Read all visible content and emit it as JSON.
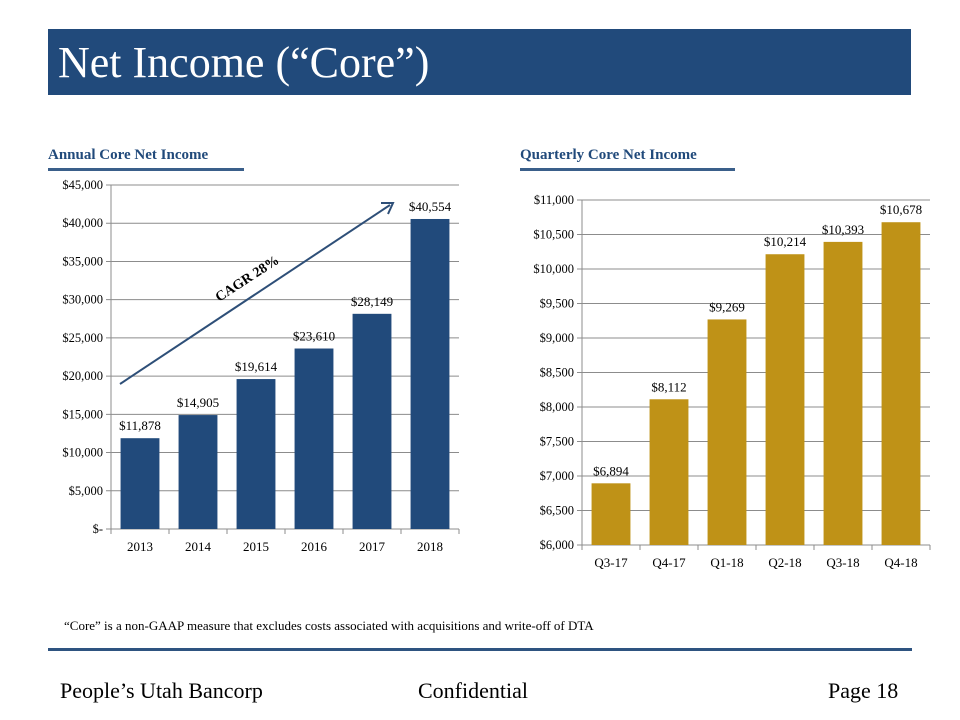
{
  "page": {
    "title": "Net Income (“Core”)",
    "note": "“Core” is a non-GAAP measure that excludes costs associated with acquisitions and write-off of DTA",
    "footer": {
      "left": "People’s Utah Bancorp",
      "center": "Confidential",
      "right": "Page 18"
    },
    "colors": {
      "title_bg": "#214a7b",
      "annual_bar": "#214a7b",
      "quarterly_bar": "#bf9217"
    }
  },
  "chart_data": [
    {
      "type": "bar",
      "title": "Annual  Core Net Income",
      "categories": [
        "2013",
        "2014",
        "2015",
        "2016",
        "2017",
        "2018"
      ],
      "values": [
        11878,
        14905,
        19614,
        23610,
        28149,
        40554
      ],
      "data_labels": [
        "$11,878",
        "$14,905",
        "$19,614",
        "$23,610",
        "$28,149",
        "$40,554"
      ],
      "ylim": [
        0,
        45000
      ],
      "yticks": [
        0,
        5000,
        10000,
        15000,
        20000,
        25000,
        30000,
        35000,
        40000,
        45000
      ],
      "ytick_labels": [
        "$-",
        "$5,000",
        "$10,000",
        "$15,000",
        "$20,000",
        "$25,000",
        "$30,000",
        "$35,000",
        "$40,000",
        "$45,000"
      ],
      "xlabel": "",
      "ylabel": "",
      "grid": true,
      "annotation": {
        "text": "CAGR 28%",
        "type": "trend-arrow"
      },
      "color": "#214a7b"
    },
    {
      "type": "bar",
      "title": "Quarterly Core Net Income",
      "categories": [
        "Q3-17",
        "Q4-17",
        "Q1-18",
        "Q2-18",
        "Q3-18",
        "Q4-18"
      ],
      "values": [
        6894,
        8112,
        9269,
        10214,
        10393,
        10678
      ],
      "data_labels": [
        "$6,894",
        "$8,112",
        "$9,269",
        "$10,214",
        "$10,393",
        "$10,678"
      ],
      "ylim": [
        6000,
        11000
      ],
      "yticks": [
        6000,
        6500,
        7000,
        7500,
        8000,
        8500,
        9000,
        9500,
        10000,
        10500,
        11000
      ],
      "ytick_labels": [
        "$6,000",
        "$6,500",
        "$7,000",
        "$7,500",
        "$8,000",
        "$8,500",
        "$9,000",
        "$9,500",
        "$10,000",
        "$10,500",
        "$11,000"
      ],
      "xlabel": "",
      "ylabel": "",
      "grid": true,
      "color": "#bf9217"
    }
  ]
}
